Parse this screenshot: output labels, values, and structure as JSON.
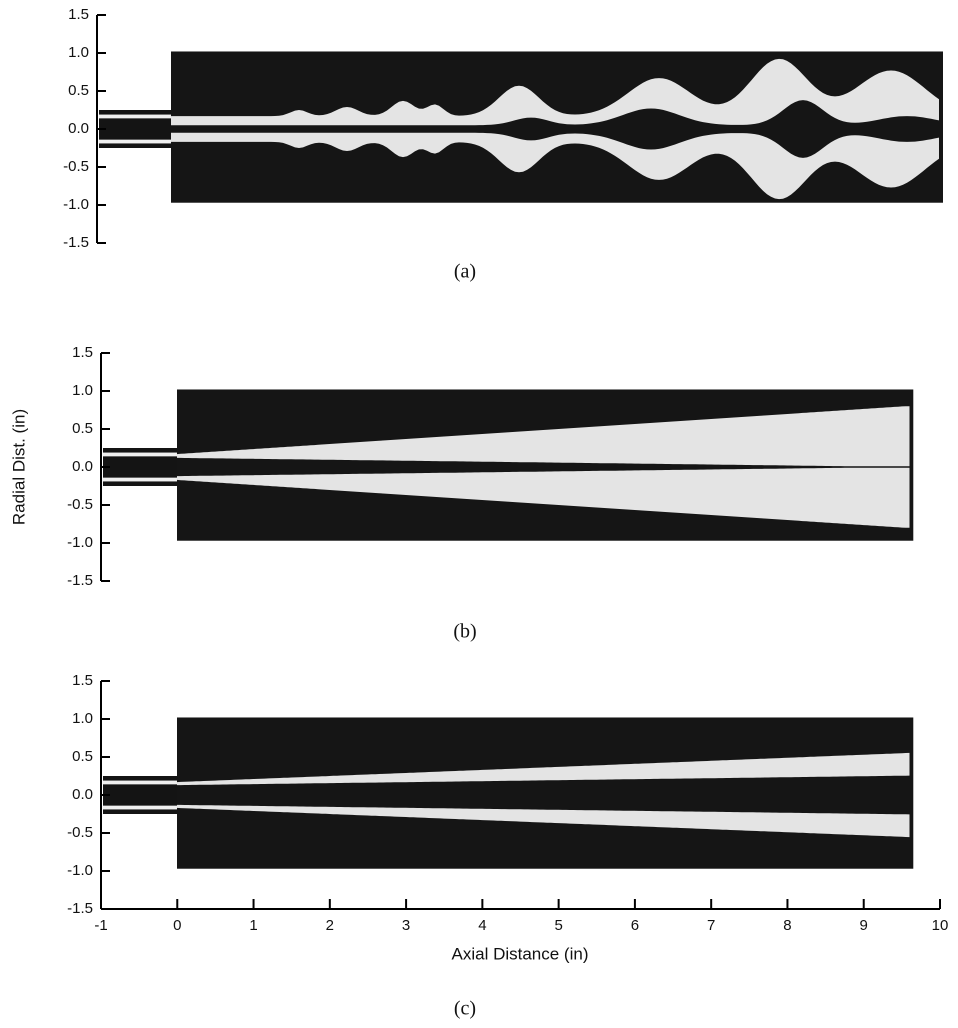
{
  "chart_data": [
    {
      "type": "image",
      "caption": "(a)",
      "ylim": [
        -1.5,
        1.5
      ],
      "yticks": [
        1.5,
        {
          "value": 1,
          "label": "1.0"
        },
        0.5,
        {
          "value": 0,
          "label": "0.0"
        },
        -0.5,
        {
          "value": -1,
          "label": "-1.0"
        },
        -1.5
      ]
    },
    {
      "type": "image",
      "caption": "(b)",
      "ylabel": "Radial Dist. (in)",
      "ylim": [
        -1.5,
        1.5
      ],
      "yticks": [
        1.5,
        {
          "value": 1,
          "label": "1.0"
        },
        0.5,
        {
          "value": 0,
          "label": "0.0"
        },
        -0.5,
        {
          "value": -1,
          "label": "-1.0"
        },
        -1.5
      ]
    },
    {
      "type": "image",
      "caption": "(c)",
      "xlabel": "Axial Distance (in)",
      "ylim": [
        -1.5,
        1.5
      ],
      "yticks": [
        1.5,
        {
          "value": 1,
          "label": "1.0"
        },
        0.5,
        {
          "value": 0,
          "label": "0.0"
        },
        -0.5,
        {
          "value": -1,
          "label": "-1.0"
        },
        -1.5
      ],
      "xlim": [
        -1,
        10
      ],
      "xticks": [
        -1,
        0,
        1,
        2,
        3,
        4,
        5,
        6,
        7,
        8,
        9,
        10
      ]
    }
  ]
}
